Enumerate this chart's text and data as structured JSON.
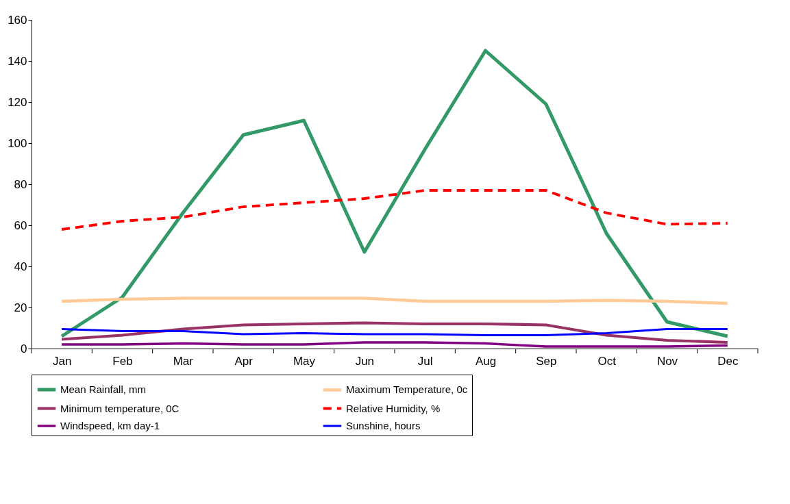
{
  "chart_data": {
    "type": "line",
    "categories": [
      "Jan",
      "Feb",
      "Mar",
      "Apr",
      "May",
      "Jun",
      "Jul",
      "Aug",
      "Sep",
      "Oct",
      "Nov",
      "Dec"
    ],
    "series": [
      {
        "name": "Mean Rainfall, mm",
        "color": "#339966",
        "values": [
          6,
          25,
          66,
          104,
          111,
          47,
          97,
          145,
          119,
          56,
          13,
          6
        ]
      },
      {
        "name": "Maximum Temperature, 0c",
        "color": "#ffcc99",
        "values": [
          23,
          24,
          24.5,
          24.5,
          24.5,
          24.5,
          23,
          23,
          23,
          23.5,
          23,
          22
        ]
      },
      {
        "name": "Minimum temperature, 0C",
        "color": "#993366",
        "values": [
          4.5,
          6.5,
          9.5,
          11.5,
          12,
          12.5,
          12,
          12,
          11.5,
          6.5,
          4,
          3
        ]
      },
      {
        "name": "Relative Humidity, %",
        "color": "#ff0000",
        "line_style": "dashed",
        "values": [
          58,
          62,
          64,
          69,
          71,
          73,
          77,
          77,
          77,
          66,
          60.5,
          61
        ]
      },
      {
        "name": "Windspeed,  km day-1",
        "color": "#800080",
        "values": [
          2,
          2,
          2.5,
          2,
          2,
          3,
          3,
          2.5,
          1,
          1,
          1,
          1.5
        ]
      },
      {
        "name": "Sunshine, hours",
        "color": "#0000ff",
        "values": [
          9.5,
          8.5,
          8.5,
          7,
          7.5,
          7,
          7,
          6.5,
          6.5,
          7.5,
          9.5,
          9.5
        ]
      }
    ],
    "ylim": [
      0,
      160
    ],
    "yticks": [
      0,
      20,
      40,
      60,
      80,
      100,
      120,
      140,
      160
    ],
    "grid": false,
    "legend": "bottom",
    "marker": "none",
    "line_style": "solid"
  }
}
